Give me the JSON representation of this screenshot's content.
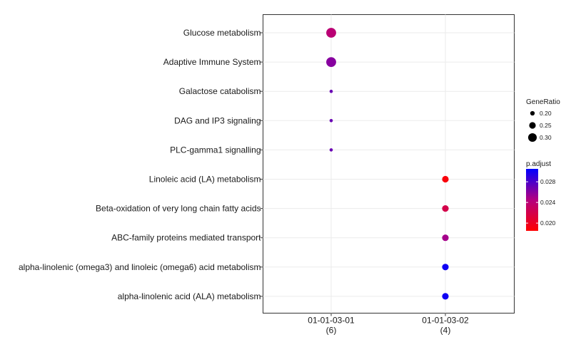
{
  "chart_data": {
    "type": "scatter",
    "title": "",
    "xlabel": "",
    "ylabel": "",
    "x_categories": [
      {
        "label": "01-01-03-01",
        "count": "(6)"
      },
      {
        "label": "01-01-03-02",
        "count": "(4)"
      }
    ],
    "y_categories": [
      "Glucose metabolism",
      "Adaptive Immune System",
      "Galactose catabolism",
      "DAG and IP3 signaling",
      "PLC-gamma1 signalling",
      "Linoleic acid (LA) metabolism",
      "Beta-oxidation of very long chain fatty acids",
      "ABC-family proteins mediated transport",
      "alpha-linolenic (omega3) and linoleic (omega6) acid metabolism",
      "alpha-linolenic acid (ALA) metabolism"
    ],
    "points": [
      {
        "x": "01-01-03-01",
        "y": "Glucose metabolism",
        "gene_ratio": 0.33,
        "p_adjust": 0.024
      },
      {
        "x": "01-01-03-01",
        "y": "Adaptive Immune System",
        "gene_ratio": 0.33,
        "p_adjust": 0.026
      },
      {
        "x": "01-01-03-01",
        "y": "Galactose catabolism",
        "gene_ratio": 0.17,
        "p_adjust": 0.027
      },
      {
        "x": "01-01-03-01",
        "y": "DAG and IP3 signaling",
        "gene_ratio": 0.17,
        "p_adjust": 0.027
      },
      {
        "x": "01-01-03-01",
        "y": "PLC-gamma1 signalling",
        "gene_ratio": 0.17,
        "p_adjust": 0.027
      },
      {
        "x": "01-01-03-02",
        "y": "Linoleic acid (LA) metabolism",
        "gene_ratio": 0.25,
        "p_adjust": 0.019
      },
      {
        "x": "01-01-03-02",
        "y": "Beta-oxidation of very long chain fatty acids",
        "gene_ratio": 0.25,
        "p_adjust": 0.022
      },
      {
        "x": "01-01-03-02",
        "y": "ABC-family proteins mediated transport",
        "gene_ratio": 0.25,
        "p_adjust": 0.025
      },
      {
        "x": "01-01-03-02",
        "y": "alpha-linolenic (omega3) and linoleic (omega6) acid metabolism",
        "gene_ratio": 0.25,
        "p_adjust": 0.03
      },
      {
        "x": "01-01-03-02",
        "y": "alpha-linolenic acid (ALA) metabolism",
        "gene_ratio": 0.25,
        "p_adjust": 0.03
      }
    ],
    "size_legend": {
      "title": "GeneRatio",
      "values": [
        0.2,
        0.25,
        0.3
      ],
      "labels": [
        "0.20",
        "0.25",
        "0.30"
      ]
    },
    "color_legend": {
      "title": "p.adjust",
      "range": [
        0.0185,
        0.0305
      ],
      "ticks": [
        0.02,
        0.024,
        0.028
      ],
      "tick_labels": [
        "0.020",
        "0.024",
        "0.028"
      ],
      "low_color": "#ff0000",
      "high_color": "#0000ff"
    },
    "gene_ratio_range": [
      0.16,
      0.34
    ],
    "grid": true,
    "legend_position": "right"
  }
}
